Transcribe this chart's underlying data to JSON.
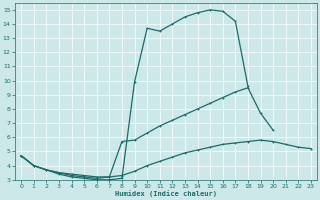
{
  "xlabel": "Humidex (Indice chaleur)",
  "bg_color": "#cde8e8",
  "grid_color": "#b8d8d8",
  "line_color": "#1a6b6b",
  "xlim": [
    -0.5,
    23.5
  ],
  "ylim": [
    3,
    15.5
  ],
  "xticks": [
    0,
    1,
    2,
    3,
    4,
    5,
    6,
    7,
    8,
    9,
    10,
    11,
    12,
    13,
    14,
    15,
    16,
    17,
    18,
    19,
    20,
    21,
    22,
    23
  ],
  "yticks": [
    3,
    4,
    5,
    6,
    7,
    8,
    9,
    10,
    11,
    12,
    13,
    14,
    15
  ],
  "curve1_x": [
    0,
    1,
    2,
    3,
    4,
    5,
    6,
    7,
    8,
    9,
    10,
    11,
    12,
    13,
    14,
    15,
    16,
    17,
    18
  ],
  "curve1_y": [
    4.7,
    4.0,
    3.7,
    3.4,
    3.2,
    3.1,
    3.0,
    3.0,
    3.1,
    9.9,
    13.7,
    13.5,
    14.0,
    14.5,
    14.8,
    15.0,
    14.9,
    14.2,
    9.6
  ],
  "curve2_x": [
    0,
    1,
    2,
    3,
    4,
    5,
    6,
    7,
    8,
    9,
    10,
    11,
    12,
    13,
    14,
    15,
    16,
    17,
    18,
    19,
    20
  ],
  "curve2_y": [
    4.7,
    4.0,
    3.7,
    3.5,
    3.3,
    3.2,
    3.1,
    3.2,
    5.7,
    5.8,
    6.3,
    6.8,
    7.2,
    7.6,
    8.0,
    8.4,
    8.8,
    9.2,
    9.5,
    7.7,
    6.5
  ],
  "curve3_x": [
    0,
    1,
    2,
    3,
    4,
    5,
    6,
    7,
    8,
    9,
    10,
    11,
    12,
    13,
    14,
    15,
    16,
    17,
    18,
    19,
    20,
    21,
    22,
    23
  ],
  "curve3_y": [
    4.7,
    4.0,
    3.7,
    3.5,
    3.4,
    3.3,
    3.2,
    3.2,
    3.3,
    3.6,
    4.0,
    4.3,
    4.6,
    4.9,
    5.1,
    5.3,
    5.5,
    5.6,
    5.7,
    5.8,
    5.7,
    5.5,
    5.3,
    5.2
  ]
}
